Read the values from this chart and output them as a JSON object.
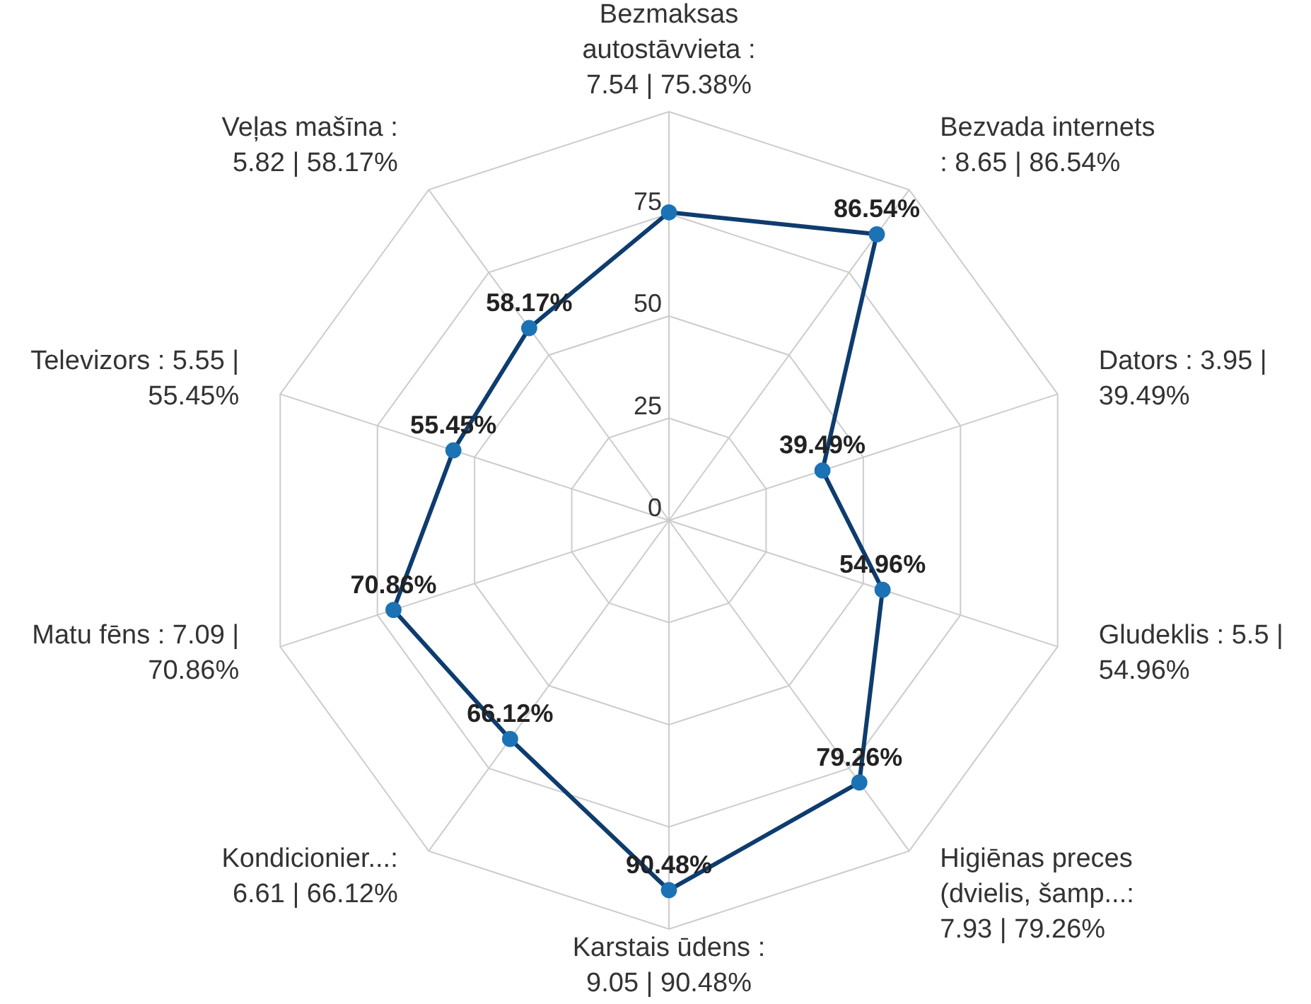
{
  "chart_data": {
    "type": "radar",
    "categories": [
      "Bezmaksas\nautostāvvieta :\n7.54 | 75.38%",
      "Bezvada internets\n: 8.65 | 86.54%",
      "Dators : 3.95 |\n39.49%",
      "Gludeklis  : 5.5 |\n54.96%",
      "Higiēnas preces\n(dvielis, šamp...:\n7.93 | 79.26%",
      "Karstais ūdens :\n9.05 | 90.48%",
      "Kondicionier...:\n6.61 | 66.12%",
      "Matu fēns : 7.09 |\n70.86%",
      "Televizors : 5.55 |\n55.45%",
      "Veļas mašīna :\n5.82 | 58.17%"
    ],
    "series": [
      {
        "color": "#0e3c6e",
        "colors": [
          "#1b72b5",
          "#1b72b5",
          "#1b72b5",
          "#1b72b5",
          "#1b72b5",
          "#1b72b5",
          "#1b72b5",
          "#1b72b5",
          "#1b72b5",
          "#1b72b5"
        ],
        "values": [
          75.38,
          86.54,
          39.49,
          54.96,
          79.26,
          90.48,
          66.12,
          70.86,
          55.45,
          58.17
        ],
        "value_labels": [
          null,
          "86.54%",
          "39.49%",
          "54.96%",
          "79.26%",
          "90.48%",
          "66.12%",
          "70.86%",
          "55.45%",
          "58.17%"
        ]
      }
    ],
    "ylim": [
      0,
      100
    ],
    "yticks": [
      0,
      25,
      50,
      75
    ],
    "grid": true,
    "marker": "circle",
    "line_style": "solid"
  }
}
